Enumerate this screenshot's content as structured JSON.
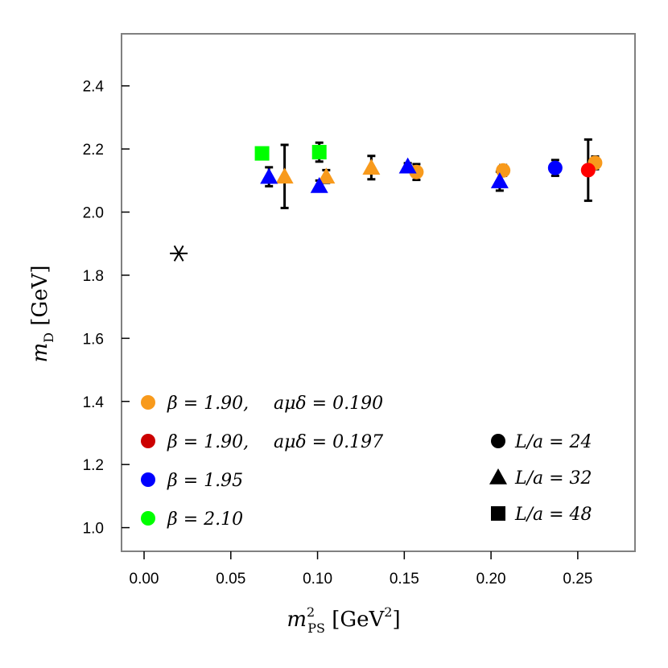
{
  "chart_data": {
    "type": "scatter",
    "xlabel": "m²PS [GeV²]",
    "ylabel": "mD [GeV]",
    "xlim": [
      -0.013,
      0.283
    ],
    "ylim": [
      0.925,
      2.565
    ],
    "x_ticks": [
      0.0,
      0.05,
      0.1,
      0.15,
      0.2,
      0.25
    ],
    "x_tick_labels": [
      "0.00",
      "0.05",
      "0.10",
      "0.15",
      "0.20",
      "0.25"
    ],
    "y_ticks": [
      1.0,
      1.2,
      1.4,
      1.6,
      1.8,
      2.0,
      2.2,
      2.4
    ],
    "y_tick_labels": [
      "1.0",
      "1.2",
      "1.4",
      "1.6",
      "1.8",
      "2.0",
      "2.2",
      "2.4"
    ],
    "colors": {
      "beta190_0190": "#F89A1C",
      "beta190_0197": "#FF0000",
      "beta195": "#0000FF",
      "beta210": "#00FF00",
      "legend_red": "#CC0000"
    },
    "series": [
      {
        "name": "β = 1.90, aμδ = 0.190",
        "color": "#F89A1C",
        "points": [
          {
            "x": 0.081,
            "y": 2.113,
            "err": 0.1,
            "shape": "triangle"
          },
          {
            "x": 0.105,
            "y": 2.113,
            "err": 0.02,
            "shape": "triangle"
          },
          {
            "x": 0.131,
            "y": 2.141,
            "err": 0.037,
            "shape": "triangle"
          },
          {
            "x": 0.157,
            "y": 2.127,
            "err": 0.025,
            "shape": "circle"
          },
          {
            "x": 0.207,
            "y": 2.132,
            "err": 0.017,
            "shape": "circle"
          },
          {
            "x": 0.26,
            "y": 2.156,
            "err": 0.02,
            "shape": "circle"
          }
        ]
      },
      {
        "name": "β = 1.90, aμδ = 0.197",
        "color": "#FF0000",
        "points": [
          {
            "x": 0.256,
            "y": 2.133,
            "err": 0.097,
            "shape": "circle"
          }
        ]
      },
      {
        "name": "β = 1.95",
        "color": "#0000FF",
        "points": [
          {
            "x": 0.072,
            "y": 2.112,
            "err": 0.03,
            "shape": "triangle"
          },
          {
            "x": 0.101,
            "y": 2.083,
            "err": 0.017,
            "shape": "triangle"
          },
          {
            "x": 0.152,
            "y": 2.145,
            "err": 0.01,
            "shape": "triangle"
          },
          {
            "x": 0.205,
            "y": 2.098,
            "err": 0.03,
            "shape": "triangle"
          },
          {
            "x": 0.237,
            "y": 2.14,
            "err": 0.025,
            "shape": "circle"
          }
        ]
      },
      {
        "name": "β = 2.10",
        "color": "#00FF00",
        "points": [
          {
            "x": 0.068,
            "y": 2.186,
            "err": 0.01,
            "shape": "square"
          },
          {
            "x": 0.101,
            "y": 2.19,
            "err": 0.03,
            "shape": "square"
          }
        ]
      }
    ],
    "physical_point": {
      "x": 0.02,
      "y": 1.869,
      "marker": "asterisk"
    },
    "legend_colors": [
      {
        "label_left": "β = 1.90, ",
        "label_right": "aμδ = 0.190",
        "color": "#F89A1C"
      },
      {
        "label_left": "β = 1.90, ",
        "label_right": "aμδ = 0.197",
        "color": "#CC0000"
      },
      {
        "label_left": "β = 1.95",
        "label_right": "",
        "color": "#0000FF"
      },
      {
        "label_left": "β = 2.10",
        "label_right": "",
        "color": "#00FF00"
      }
    ],
    "legend_shapes": [
      {
        "label": "L/a = 24",
        "shape": "circle"
      },
      {
        "label": "L/a = 32",
        "shape": "triangle"
      },
      {
        "label": "L/a = 48",
        "shape": "square"
      }
    ]
  }
}
